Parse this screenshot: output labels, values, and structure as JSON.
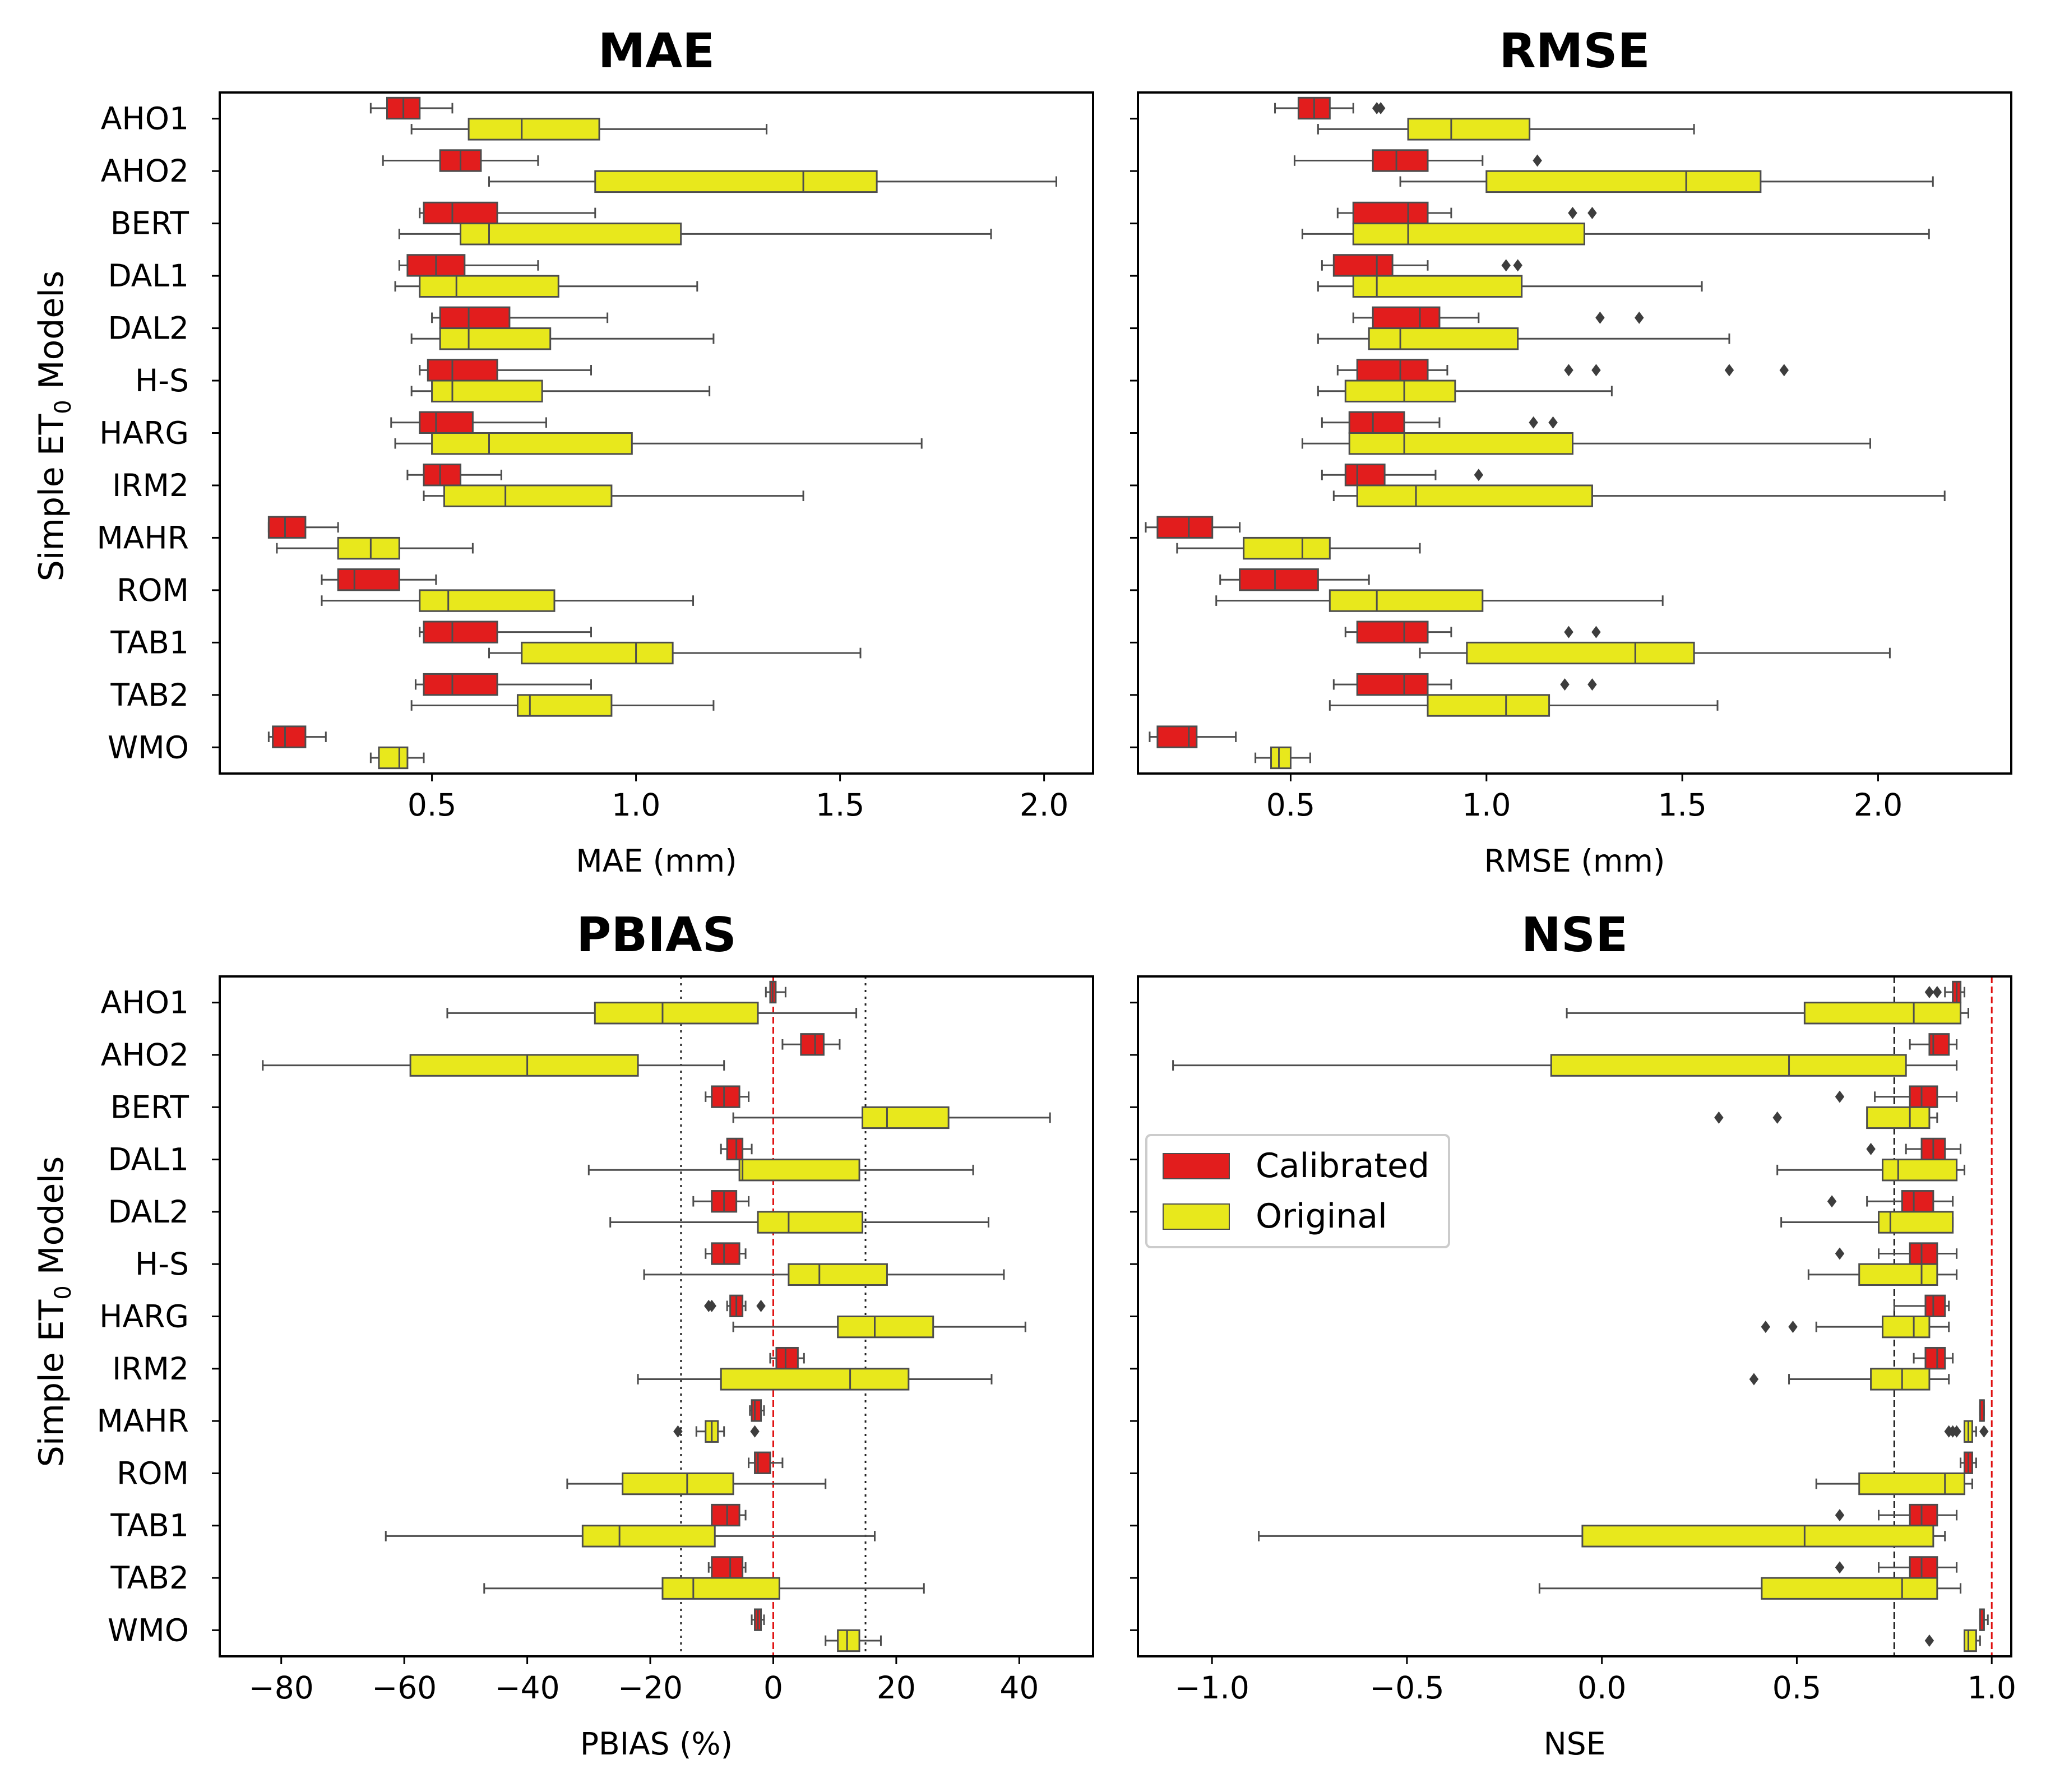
{
  "categories": [
    "AHO1",
    "AHO2",
    "BERT",
    "DAL1",
    "DAL2",
    "H-S",
    "HARG",
    "IRM2",
    "MAHR",
    "ROM",
    "TAB1",
    "TAB2",
    "WMO"
  ],
  "ylabel_prefix": "Simple ET",
  "ylabel_sub": "0",
  "ylabel_suffix": " Models",
  "colors": {
    "calibrated": "#e21d1d",
    "original": "#e8e81c",
    "whisker": "#4d4d4d",
    "ref_line": "#e01010"
  },
  "legend": {
    "calibrated": "Calibrated",
    "original": "Original",
    "location": "center-left"
  },
  "chart_data": [
    {
      "type": "box",
      "title": "MAE",
      "xlabel": "MAE (mm)",
      "xlim": [
        -0.02,
        2.12
      ],
      "xticks": [
        0.5,
        1.0,
        1.5,
        2.0
      ],
      "xtick_labels": [
        "0.5",
        "1.0",
        "1.5",
        "2.0"
      ],
      "ref_lines": [],
      "series": [
        {
          "name": "Calibrated",
          "boxes": [
            [
              0.35,
              0.39,
              0.43,
              0.47,
              0.55,
              []
            ],
            [
              0.38,
              0.52,
              0.57,
              0.62,
              0.76,
              []
            ],
            [
              0.47,
              0.48,
              0.55,
              0.66,
              0.9,
              []
            ],
            [
              0.42,
              0.44,
              0.51,
              0.58,
              0.76,
              []
            ],
            [
              0.5,
              0.52,
              0.59,
              0.69,
              0.93,
              []
            ],
            [
              0.47,
              0.49,
              0.55,
              0.66,
              0.89,
              []
            ],
            [
              0.4,
              0.47,
              0.51,
              0.6,
              0.78,
              []
            ],
            [
              0.44,
              0.48,
              0.52,
              0.57,
              0.67,
              []
            ],
            [
              0.1,
              0.1,
              0.14,
              0.19,
              0.27,
              []
            ],
            [
              0.23,
              0.27,
              0.31,
              0.42,
              0.51,
              []
            ],
            [
              0.47,
              0.48,
              0.55,
              0.66,
              0.89,
              []
            ],
            [
              0.46,
              0.48,
              0.55,
              0.66,
              0.89,
              []
            ],
            [
              0.1,
              0.11,
              0.14,
              0.19,
              0.24,
              []
            ]
          ]
        },
        {
          "name": "Original",
          "boxes": [
            [
              0.45,
              0.59,
              0.72,
              0.91,
              1.32,
              []
            ],
            [
              0.64,
              0.9,
              1.41,
              1.59,
              2.03,
              []
            ],
            [
              0.42,
              0.57,
              0.64,
              1.11,
              1.87,
              []
            ],
            [
              0.41,
              0.47,
              0.56,
              0.81,
              1.15,
              []
            ],
            [
              0.45,
              0.52,
              0.59,
              0.79,
              1.19,
              []
            ],
            [
              0.45,
              0.5,
              0.55,
              0.77,
              1.18,
              []
            ],
            [
              0.41,
              0.5,
              0.64,
              0.99,
              1.7,
              []
            ],
            [
              0.48,
              0.53,
              0.68,
              0.94,
              1.41,
              []
            ],
            [
              0.12,
              0.27,
              0.35,
              0.42,
              0.6,
              []
            ],
            [
              0.23,
              0.47,
              0.54,
              0.8,
              1.14,
              []
            ],
            [
              0.64,
              0.72,
              1.0,
              1.09,
              1.55,
              []
            ],
            [
              0.45,
              0.71,
              0.74,
              0.94,
              1.19,
              []
            ],
            [
              0.35,
              0.37,
              0.42,
              0.44,
              0.48,
              []
            ]
          ]
        }
      ]
    },
    {
      "type": "box",
      "title": "RMSE",
      "xlabel": "RMSE (mm)",
      "xlim": [
        0.11,
        2.34
      ],
      "xticks": [
        0.5,
        1.0,
        1.5,
        2.0
      ],
      "xtick_labels": [
        "0.5",
        "1.0",
        "1.5",
        "2.0"
      ],
      "ref_lines": [],
      "series": [
        {
          "name": "Calibrated",
          "boxes": [
            [
              0.46,
              0.52,
              0.56,
              0.6,
              0.66,
              [
                0.72,
                0.73
              ]
            ],
            [
              0.51,
              0.71,
              0.77,
              0.85,
              0.99,
              [
                1.13
              ]
            ],
            [
              0.62,
              0.66,
              0.8,
              0.85,
              0.91,
              [
                1.22,
                1.27
              ]
            ],
            [
              0.58,
              0.61,
              0.72,
              0.76,
              0.85,
              [
                1.05,
                1.08
              ]
            ],
            [
              0.66,
              0.71,
              0.83,
              0.88,
              0.98,
              [
                1.29,
                1.39
              ]
            ],
            [
              0.62,
              0.67,
              0.78,
              0.85,
              0.9,
              [
                1.21,
                1.28,
                1.62,
                1.76
              ]
            ],
            [
              0.58,
              0.65,
              0.71,
              0.79,
              0.88,
              [
                1.12,
                1.17
              ]
            ],
            [
              0.58,
              0.64,
              0.67,
              0.74,
              0.87,
              [
                0.98
              ]
            ],
            [
              0.13,
              0.16,
              0.24,
              0.3,
              0.37,
              []
            ],
            [
              0.32,
              0.37,
              0.46,
              0.57,
              0.7,
              []
            ],
            [
              0.64,
              0.67,
              0.79,
              0.85,
              0.91,
              [
                1.21,
                1.28
              ]
            ],
            [
              0.61,
              0.67,
              0.79,
              0.85,
              0.91,
              [
                1.2,
                1.27
              ]
            ],
            [
              0.14,
              0.16,
              0.24,
              0.26,
              0.36,
              []
            ]
          ]
        },
        {
          "name": "Original",
          "boxes": [
            [
              0.57,
              0.8,
              0.91,
              1.11,
              1.53,
              []
            ],
            [
              0.78,
              1.0,
              1.51,
              1.7,
              2.14,
              []
            ],
            [
              0.53,
              0.66,
              0.8,
              1.25,
              2.13,
              []
            ],
            [
              0.57,
              0.66,
              0.72,
              1.09,
              1.55,
              []
            ],
            [
              0.57,
              0.7,
              0.78,
              1.08,
              1.62,
              []
            ],
            [
              0.57,
              0.64,
              0.79,
              0.92,
              1.32,
              []
            ],
            [
              0.53,
              0.65,
              0.79,
              1.22,
              1.98,
              []
            ],
            [
              0.61,
              0.67,
              0.82,
              1.27,
              2.17,
              []
            ],
            [
              0.21,
              0.38,
              0.53,
              0.6,
              0.83,
              []
            ],
            [
              0.31,
              0.6,
              0.72,
              0.99,
              1.45,
              []
            ],
            [
              0.83,
              0.95,
              1.38,
              1.53,
              2.03,
              []
            ],
            [
              0.6,
              0.85,
              1.05,
              1.16,
              1.59,
              []
            ],
            [
              0.41,
              0.45,
              0.47,
              0.5,
              0.55,
              []
            ]
          ]
        }
      ]
    },
    {
      "type": "box",
      "title": "PBIAS",
      "xlabel": "PBIAS (%)",
      "xlim": [
        -90,
        52
      ],
      "xticks": [
        -80,
        -60,
        -40,
        -20,
        0,
        20,
        40
      ],
      "xtick_labels": [
        "−80",
        "−60",
        "−40",
        "−20",
        "0",
        "20",
        "40"
      ],
      "ref_lines": [
        {
          "x": -15,
          "style": "dotted",
          "color": "#222222"
        },
        {
          "x": 15,
          "style": "dotted",
          "color": "#222222"
        },
        {
          "x": 0,
          "style": "dashed",
          "color": "#e01010"
        }
      ],
      "series": [
        {
          "name": "Calibrated",
          "boxes": [
            [
              -1.2,
              -0.5,
              -0.1,
              0.4,
              2.0,
              []
            ],
            [
              1.5,
              4.5,
              6.8,
              8.2,
              10.8,
              []
            ],
            [
              -11.0,
              -10.0,
              -8.0,
              -5.5,
              -4.0,
              []
            ],
            [
              -8.5,
              -7.5,
              -6.0,
              -5.0,
              -3.5,
              []
            ],
            [
              -13.0,
              -10.0,
              -8.0,
              -6.0,
              -4.0,
              []
            ],
            [
              -11.0,
              -10.0,
              -8.0,
              -5.5,
              -4.5,
              []
            ],
            [
              -7.5,
              -7.0,
              -6.0,
              -5.0,
              -4.5,
              [
                -10.5,
                -10.0,
                -2.0
              ]
            ],
            [
              -0.5,
              0.5,
              2.0,
              4.0,
              5.0,
              []
            ],
            [
              -3.8,
              -3.5,
              -3.0,
              -2.0,
              -1.5,
              []
            ],
            [
              -4.0,
              -3.0,
              -2.5,
              -0.5,
              1.5,
              []
            ],
            [
              -10.0,
              -10.0,
              -7.5,
              -5.5,
              -4.5,
              []
            ],
            [
              -10.5,
              -10.0,
              -7.0,
              -5.0,
              -4.5,
              []
            ],
            [
              -3.5,
              -3.0,
              -2.5,
              -2.0,
              -1.5,
              []
            ]
          ]
        },
        {
          "name": "Original",
          "boxes": [
            [
              -53.0,
              -29.0,
              -18.0,
              -2.5,
              13.5,
              []
            ],
            [
              -83.0,
              -59.0,
              -40.0,
              -22.0,
              -8.0,
              []
            ],
            [
              -6.5,
              14.5,
              18.5,
              28.5,
              45.0,
              []
            ],
            [
              -30.0,
              -5.5,
              -5.0,
              14.0,
              32.5,
              []
            ],
            [
              -26.5,
              -2.5,
              2.5,
              14.5,
              35.0,
              []
            ],
            [
              -21.0,
              2.5,
              7.5,
              18.5,
              37.5,
              []
            ],
            [
              -6.5,
              10.5,
              16.5,
              26.0,
              41.0,
              []
            ],
            [
              -22.0,
              -8.5,
              12.5,
              22.0,
              35.5,
              []
            ],
            [
              -12.5,
              -11.0,
              -10.0,
              -9.0,
              -8.0,
              [
                -15.5,
                -3.0
              ]
            ],
            [
              -33.5,
              -24.5,
              -14.0,
              -6.5,
              8.5,
              []
            ],
            [
              -63.0,
              -31.0,
              -25.0,
              -9.5,
              16.5,
              []
            ],
            [
              -47.0,
              -18.0,
              -13.0,
              1.0,
              24.5,
              []
            ],
            [
              8.5,
              10.5,
              12.0,
              14.0,
              17.5,
              []
            ]
          ]
        }
      ]
    },
    {
      "type": "box",
      "title": "NSE",
      "xlabel": "NSE",
      "xlim": [
        -1.19,
        1.05
      ],
      "xticks": [
        -1.0,
        -0.5,
        0.0,
        0.5,
        1.0
      ],
      "xtick_labels": [
        "−1.0",
        "−0.5",
        "0.0",
        "0.5",
        "1.0"
      ],
      "ref_lines": [
        {
          "x": 0.75,
          "style": "dashed",
          "color": "#222222"
        },
        {
          "x": 1.0,
          "style": "dashed",
          "color": "#e01010"
        }
      ],
      "series": [
        {
          "name": "Calibrated",
          "boxes": [
            [
              0.88,
              0.9,
              0.91,
              0.92,
              0.93,
              [
                0.84,
                0.86
              ]
            ],
            [
              0.79,
              0.84,
              0.85,
              0.89,
              0.91,
              []
            ],
            [
              0.7,
              0.79,
              0.82,
              0.86,
              0.91,
              [
                0.61
              ]
            ],
            [
              0.78,
              0.82,
              0.85,
              0.88,
              0.92,
              [
                0.69
              ]
            ],
            [
              0.68,
              0.77,
              0.8,
              0.85,
              0.9,
              [
                0.59
              ]
            ],
            [
              0.71,
              0.79,
              0.82,
              0.86,
              0.91,
              [
                0.61
              ]
            ],
            [
              0.75,
              0.83,
              0.85,
              0.88,
              0.89,
              []
            ],
            [
              0.8,
              0.83,
              0.86,
              0.88,
              0.9,
              []
            ],
            [
              0.97,
              0.97,
              0.98,
              0.98,
              0.98,
              []
            ],
            [
              0.92,
              0.93,
              0.94,
              0.95,
              0.96,
              []
            ],
            [
              0.71,
              0.79,
              0.82,
              0.86,
              0.91,
              [
                0.61
              ]
            ],
            [
              0.71,
              0.79,
              0.82,
              0.86,
              0.91,
              [
                0.61
              ]
            ],
            [
              0.97,
              0.97,
              0.98,
              0.98,
              0.99,
              []
            ]
          ]
        },
        {
          "name": "Original",
          "boxes": [
            [
              -0.09,
              0.52,
              0.8,
              0.92,
              0.94,
              []
            ],
            [
              -1.1,
              -0.13,
              0.48,
              0.78,
              0.91,
              []
            ],
            [
              0.73,
              0.68,
              0.79,
              0.84,
              0.86,
              [
                0.3,
                0.45
              ]
            ],
            [
              0.45,
              0.72,
              0.76,
              0.91,
              0.93,
              []
            ],
            [
              0.46,
              0.71,
              0.74,
              0.9,
              0.9,
              []
            ],
            [
              0.53,
              0.66,
              0.82,
              0.86,
              0.91,
              []
            ],
            [
              0.55,
              0.72,
              0.8,
              0.84,
              0.89,
              [
                0.42,
                0.49
              ]
            ],
            [
              0.48,
              0.69,
              0.77,
              0.84,
              0.89,
              [
                0.39
              ]
            ],
            [
              0.93,
              0.93,
              0.94,
              0.95,
              0.96,
              [
                0.89,
                0.9,
                0.91,
                0.98
              ]
            ],
            [
              0.55,
              0.66,
              0.88,
              0.93,
              0.95,
              []
            ],
            [
              -0.88,
              -0.05,
              0.52,
              0.85,
              0.88,
              []
            ],
            [
              -0.16,
              0.41,
              0.77,
              0.86,
              0.92,
              []
            ],
            [
              0.93,
              0.93,
              0.94,
              0.96,
              0.97,
              [
                0.84
              ]
            ]
          ]
        }
      ]
    }
  ]
}
